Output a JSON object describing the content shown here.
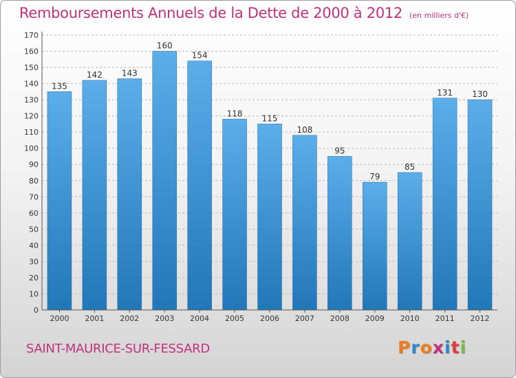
{
  "header": {
    "title": "Remboursements Annuels de la Dette de 2000 à 2012",
    "unit": "(en milliers d'€)"
  },
  "footer": {
    "commune": "SAINT-MAURICE-SUR-FESSARD",
    "logo_text": "Proxiti",
    "logo_letter_colors": [
      "#f07c1c",
      "#2e88c8",
      "#f07c1c",
      "#c0317d",
      "#2e88c8",
      "#e03a3a",
      "#7ab648"
    ]
  },
  "colors": {
    "bar_light": "#5caeea",
    "bar_dark": "#2277b8",
    "grid": "#b8b8b8",
    "title": "#c0317d"
  },
  "chart_data": {
    "type": "bar",
    "categories": [
      "2000",
      "2001",
      "2002",
      "2003",
      "2004",
      "2005",
      "2006",
      "2007",
      "2008",
      "2009",
      "2010",
      "2011",
      "2012"
    ],
    "values": [
      135,
      142,
      143,
      160,
      154,
      118,
      115,
      108,
      95,
      79,
      85,
      131,
      130
    ],
    "ylim": [
      0,
      170
    ],
    "ytick_step": 10,
    "grid": true,
    "grid_style": "dashed",
    "data_labels": true
  }
}
